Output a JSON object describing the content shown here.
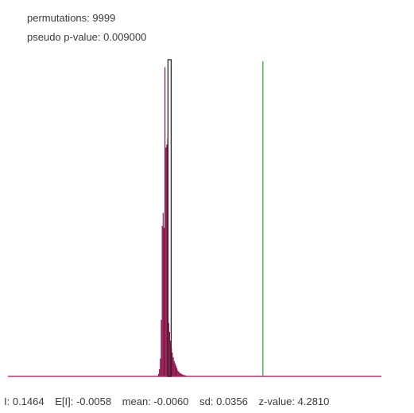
{
  "header": {
    "permutations_text": "permutations: 9999",
    "pvalue_text": "pseudo p-value: 0.009000"
  },
  "stats": {
    "I": "I: 0.1464",
    "EI": "E[I]: -0.0058",
    "mean": "mean: -0.0060",
    "sd": "sd: 0.0356",
    "z": "z-value: 4.2810"
  },
  "colors": {
    "bars": "#8b1048",
    "baseline": "#b0307a",
    "observed_line": "#2a9d3a",
    "mean_box": "#222222"
  },
  "chart_data": {
    "type": "bar",
    "title": "",
    "xlabel": "",
    "ylabel": "",
    "grid": false,
    "xlim": [
      -0.27,
      0.34
    ],
    "bins": [
      {
        "x": -0.024,
        "count": 4
      },
      {
        "x": -0.0225,
        "count": 12
      },
      {
        "x": -0.021,
        "count": 30
      },
      {
        "x": -0.0195,
        "count": 95
      },
      {
        "x": -0.018,
        "count": 253
      },
      {
        "x": -0.0165,
        "count": 275
      },
      {
        "x": -0.015,
        "count": 250
      },
      {
        "x": -0.0135,
        "count": 520
      },
      {
        "x": -0.012,
        "count": 385
      },
      {
        "x": -0.0105,
        "count": 390
      },
      {
        "x": -0.009,
        "count": 400
      },
      {
        "x": -0.0075,
        "count": 90
      },
      {
        "x": -0.006,
        "count": 75
      },
      {
        "x": -0.0045,
        "count": 60
      },
      {
        "x": -0.003,
        "count": 48
      },
      {
        "x": -0.0015,
        "count": 40
      },
      {
        "x": 0.0,
        "count": 32
      },
      {
        "x": 0.0015,
        "count": 26
      },
      {
        "x": 0.003,
        "count": 22
      },
      {
        "x": 0.0045,
        "count": 18
      },
      {
        "x": 0.006,
        "count": 14
      },
      {
        "x": 0.0075,
        "count": 10
      },
      {
        "x": 0.009,
        "count": 8
      },
      {
        "x": 0.0105,
        "count": 6
      },
      {
        "x": 0.012,
        "count": 5
      },
      {
        "x": 0.0135,
        "count": 4
      },
      {
        "x": 0.015,
        "count": 3
      },
      {
        "x": 0.0165,
        "count": 3
      },
      {
        "x": 0.018,
        "count": 2
      },
      {
        "x": 0.0195,
        "count": 2
      },
      {
        "x": 0.021,
        "count": 1
      },
      {
        "x": 0.0225,
        "count": 1
      }
    ],
    "ylim": [
      0,
      530
    ],
    "observed_I": 0.1464,
    "expected_I": -0.0058,
    "mean": -0.006,
    "sd": 0.0356
  }
}
